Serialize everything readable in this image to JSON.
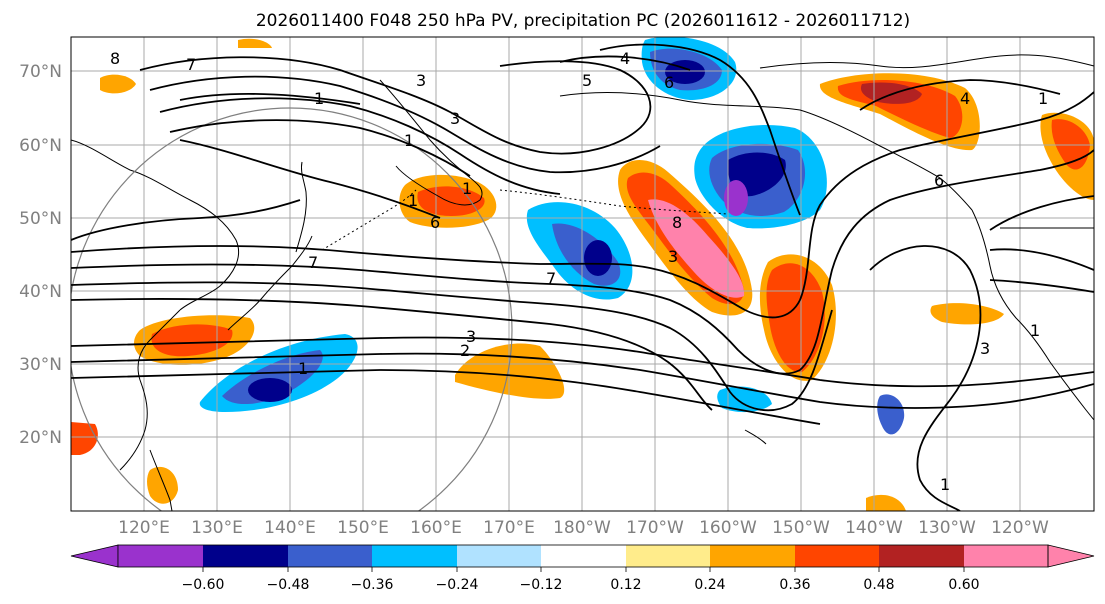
{
  "title": "2026011400 F048 250 hPa PV, precipitation PC (2026011612 - 2026011712)",
  "lat_labels": [
    "70°N",
    "60°N",
    "50°N",
    "40°N",
    "30°N",
    "20°N"
  ],
  "lon_labels": [
    "120°E",
    "130°E",
    "140°E",
    "150°E",
    "160°E",
    "170°E",
    "180°W",
    "170°W",
    "160°W",
    "150°W",
    "140°W",
    "130°W",
    "120°W"
  ],
  "colorbar": {
    "tick_labels": [
      "−0.60",
      "−0.48",
      "−0.36",
      "−0.24",
      "−0.12",
      "0.12",
      "0.24",
      "0.36",
      "0.48",
      "0.60"
    ],
    "colors": [
      "#9a32cd",
      "#00008b",
      "#3a5fcd",
      "#00bfff",
      "#b0e2ff",
      "#ffffff",
      "#ffec8b",
      "#ffa500",
      "#ff4500",
      "#b22222",
      "#ff82ab"
    ]
  },
  "contour_labels": [
    "8",
    "7",
    "1",
    "3",
    "5",
    "4",
    "6",
    "3",
    "1",
    "1",
    "1",
    "6",
    "7",
    "7",
    "8",
    "3",
    "2",
    "1",
    "3",
    "1",
    "3",
    "1",
    "4",
    "1",
    "6"
  ]
}
